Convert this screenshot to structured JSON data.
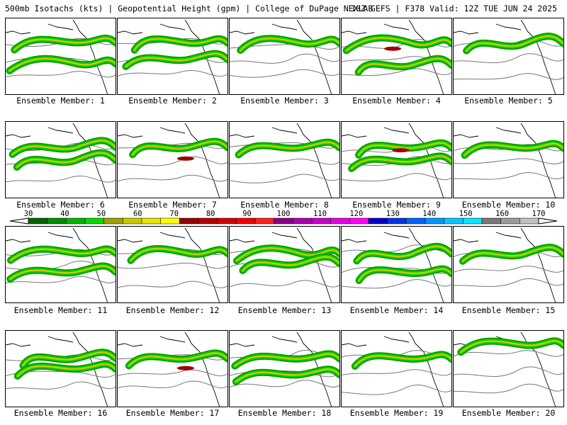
{
  "header": {
    "title_left": "500mb Isotachs (kts) | Geopotential Height (gpm) | College of DuPage NEXLAB",
    "title_right": "18Z GEFS | F378 Valid: 12Z TUE JUN 24 2025"
  },
  "colorbar": {
    "labels": [
      "30",
      "40",
      "50",
      "60",
      "70",
      "80",
      "90",
      "100",
      "110",
      "120",
      "130",
      "140",
      "150",
      "160",
      "170"
    ],
    "colors": [
      "#006400",
      "#008c00",
      "#00b400",
      "#00dc00",
      "#a0a000",
      "#c8c800",
      "#e6e600",
      "#ffff00",
      "#960000",
      "#b40000",
      "#d20000",
      "#f00000",
      "#ff2020",
      "#8c008c",
      "#aa00aa",
      "#c800c8",
      "#e600e6",
      "#ff00ff",
      "#0000c8",
      "#0032e6",
      "#0064ff",
      "#0096ff",
      "#00c8ff",
      "#00e6ff",
      "#787878",
      "#9a9a9a",
      "#c0c0c0"
    ]
  },
  "members": [
    {
      "caption": "Ensemble Member: 1"
    },
    {
      "caption": "Ensemble Member: 2"
    },
    {
      "caption": "Ensemble Member: 3"
    },
    {
      "caption": "Ensemble Member: 4"
    },
    {
      "caption": "Ensemble Member: 5"
    },
    {
      "caption": "Ensemble Member: 6"
    },
    {
      "caption": "Ensemble Member: 7"
    },
    {
      "caption": "Ensemble Member: 8"
    },
    {
      "caption": "Ensemble Member: 9"
    },
    {
      "caption": "Ensemble Member: 10"
    },
    {
      "caption": "Ensemble Member: 11"
    },
    {
      "caption": "Ensemble Member: 12"
    },
    {
      "caption": "Ensemble Member: 13"
    },
    {
      "caption": "Ensemble Member: 14"
    },
    {
      "caption": "Ensemble Member: 15"
    },
    {
      "caption": "Ensemble Member: 16"
    },
    {
      "caption": "Ensemble Member: 17"
    },
    {
      "caption": "Ensemble Member: 18"
    },
    {
      "caption": "Ensemble Member: 19"
    },
    {
      "caption": "Ensemble Member: 20"
    }
  ]
}
